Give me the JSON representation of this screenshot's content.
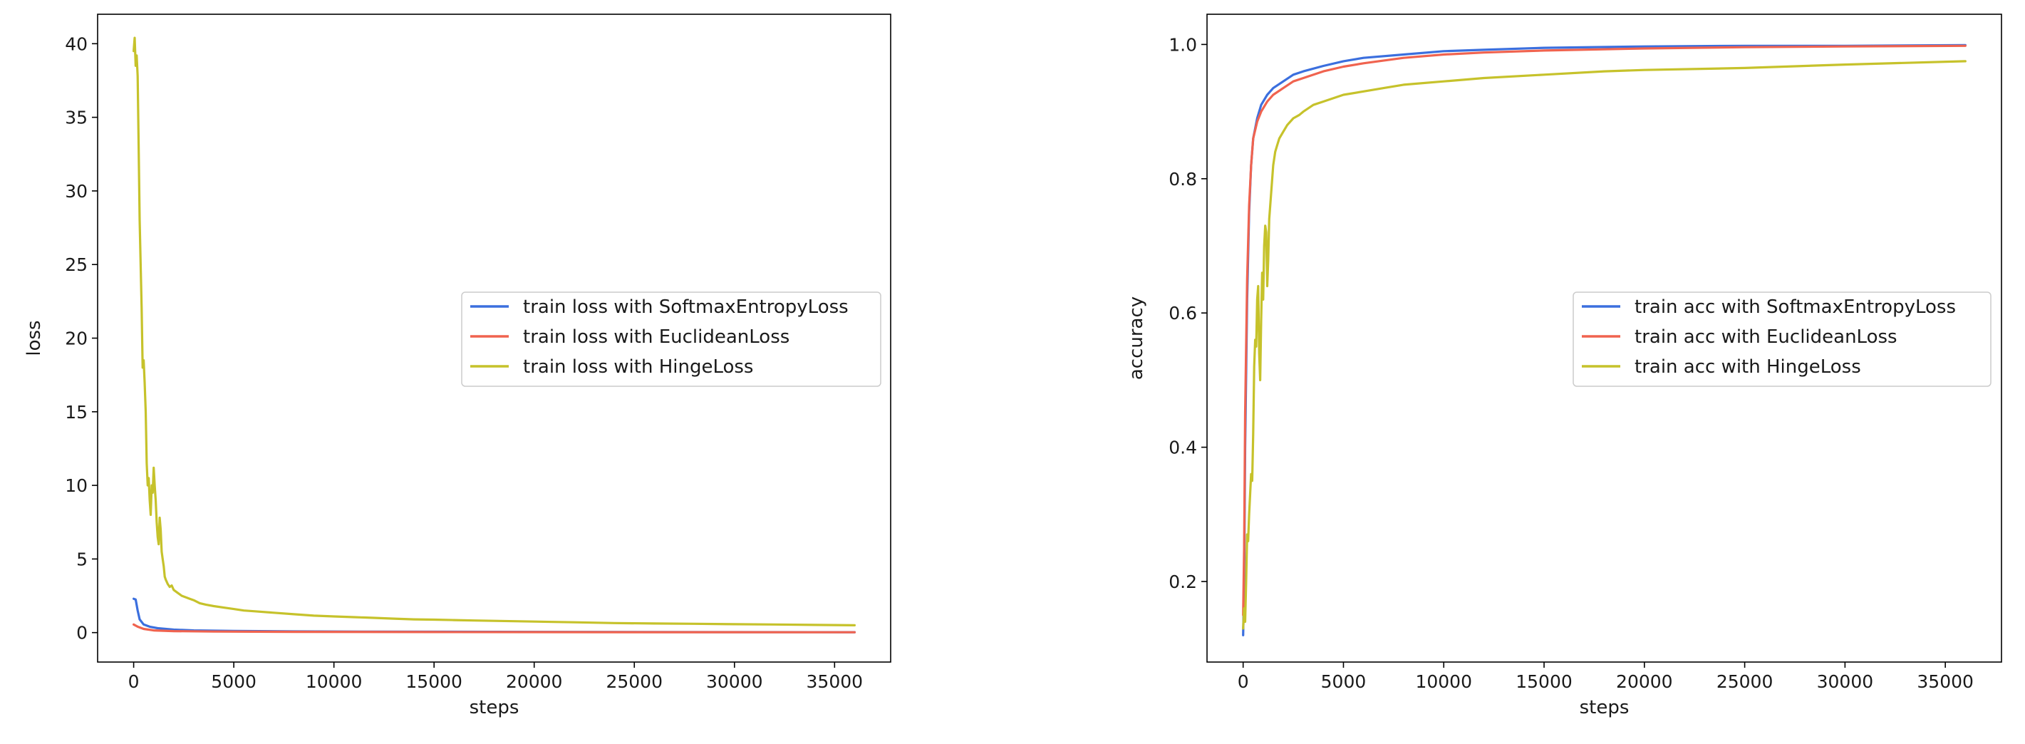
{
  "chart_data": [
    {
      "type": "line",
      "xlabel": "steps",
      "ylabel": "loss",
      "xlim": [
        -1800,
        37800
      ],
      "ylim": [
        -2,
        42
      ],
      "xticks": [
        0,
        5000,
        10000,
        15000,
        20000,
        25000,
        30000,
        35000
      ],
      "yticks": [
        0,
        5,
        10,
        15,
        20,
        25,
        30,
        35,
        40
      ],
      "grid": false,
      "legend_position": "center-right",
      "series": [
        {
          "name": "train loss with SoftmaxEntropyLoss",
          "color": "#3b6fde",
          "x": [
            0,
            100,
            200,
            300,
            500,
            800,
            1200,
            2000,
            3000,
            5000,
            8000,
            12000,
            18000,
            25000,
            30000,
            36000
          ],
          "y": [
            2.3,
            2.25,
            1.5,
            0.9,
            0.55,
            0.4,
            0.3,
            0.2,
            0.15,
            0.11,
            0.08,
            0.06,
            0.05,
            0.04,
            0.035,
            0.03
          ]
        },
        {
          "name": "train loss with EuclideanLoss",
          "color": "#f0634f",
          "x": [
            0,
            200,
            500,
            1000,
            2000,
            4000,
            8000,
            15000,
            25000,
            36000
          ],
          "y": [
            0.55,
            0.4,
            0.25,
            0.15,
            0.1,
            0.07,
            0.05,
            0.04,
            0.03,
            0.025
          ]
        },
        {
          "name": "train loss with HingeLoss",
          "color": "#c6c22b",
          "x": [
            0,
            50,
            100,
            150,
            200,
            250,
            300,
            400,
            450,
            500,
            550,
            600,
            650,
            700,
            750,
            800,
            850,
            900,
            950,
            1000,
            1050,
            1100,
            1150,
            1200,
            1250,
            1300,
            1350,
            1400,
            1450,
            1500,
            1550,
            1600,
            1700,
            1800,
            1900,
            2000,
            2200,
            2400,
            2600,
            2800,
            3000,
            3300,
            3600,
            4000,
            4500,
            5000,
            5500,
            6000,
            7000,
            8000,
            9000,
            10000,
            11000,
            12000,
            13000,
            14000,
            15000,
            16000,
            17000,
            18000,
            20000,
            22000,
            24000,
            26000,
            28000,
            30000,
            32000,
            34000,
            36000
          ],
          "y": [
            39.5,
            40.4,
            38.5,
            39.2,
            37.8,
            33,
            28,
            22,
            18,
            18.5,
            17,
            15,
            11.5,
            10,
            10.5,
            9,
            8,
            10,
            9.5,
            11.2,
            10,
            9,
            7.5,
            6.5,
            6,
            7.8,
            7,
            5.5,
            5,
            4.5,
            3.8,
            3.6,
            3.3,
            3.1,
            3.2,
            2.9,
            2.7,
            2.5,
            2.4,
            2.3,
            2.2,
            2.0,
            1.9,
            1.8,
            1.7,
            1.6,
            1.5,
            1.45,
            1.35,
            1.25,
            1.15,
            1.1,
            1.05,
            1.0,
            0.95,
            0.9,
            0.88,
            0.85,
            0.82,
            0.8,
            0.75,
            0.7,
            0.65,
            0.62,
            0.6,
            0.57,
            0.55,
            0.52,
            0.5
          ]
        }
      ]
    },
    {
      "type": "line",
      "xlabel": "steps",
      "ylabel": "accuracy",
      "xlim": [
        -1800,
        37800
      ],
      "ylim": [
        0.08,
        1.045
      ],
      "xticks": [
        0,
        5000,
        10000,
        15000,
        20000,
        25000,
        30000,
        35000
      ],
      "yticks": [
        0.2,
        0.4,
        0.6,
        0.8,
        1.0
      ],
      "grid": false,
      "legend_position": "center-right",
      "series": [
        {
          "name": "train acc with SoftmaxEntropyLoss",
          "color": "#3b6fde",
          "x": [
            0,
            50,
            100,
            200,
            300,
            400,
            500,
            700,
            900,
            1200,
            1500,
            2000,
            2500,
            3000,
            4000,
            5000,
            6000,
            8000,
            10000,
            12000,
            15000,
            20000,
            25000,
            30000,
            36000
          ],
          "y": [
            0.12,
            0.2,
            0.4,
            0.62,
            0.75,
            0.82,
            0.86,
            0.89,
            0.91,
            0.925,
            0.935,
            0.945,
            0.955,
            0.96,
            0.968,
            0.975,
            0.98,
            0.985,
            0.99,
            0.992,
            0.995,
            0.997,
            0.998,
            0.998,
            0.999
          ]
        },
        {
          "name": "train acc with EuclideanLoss",
          "color": "#f0634f",
          "x": [
            0,
            50,
            100,
            200,
            300,
            400,
            500,
            700,
            900,
            1200,
            1500,
            2000,
            2500,
            3000,
            4000,
            5000,
            6000,
            8000,
            10000,
            12000,
            15000,
            20000,
            25000,
            30000,
            36000
          ],
          "y": [
            0.15,
            0.25,
            0.45,
            0.65,
            0.76,
            0.82,
            0.86,
            0.885,
            0.9,
            0.915,
            0.925,
            0.935,
            0.945,
            0.95,
            0.96,
            0.967,
            0.972,
            0.98,
            0.985,
            0.988,
            0.991,
            0.994,
            0.996,
            0.997,
            0.998
          ]
        },
        {
          "name": "train acc with HingeLoss",
          "color": "#c6c22b",
          "x": [
            0,
            50,
            100,
            150,
            200,
            250,
            300,
            350,
            400,
            450,
            500,
            550,
            600,
            650,
            700,
            750,
            800,
            850,
            900,
            950,
            1000,
            1050,
            1100,
            1150,
            1200,
            1250,
            1300,
            1350,
            1400,
            1450,
            1500,
            1600,
            1700,
            1800,
            2000,
            2200,
            2500,
            2800,
            3000,
            3500,
            4000,
            5000,
            6000,
            7000,
            8000,
            10000,
            12000,
            15000,
            18000,
            20000,
            25000,
            30000,
            36000
          ],
          "y": [
            0.13,
            0.16,
            0.14,
            0.2,
            0.27,
            0.26,
            0.3,
            0.33,
            0.36,
            0.35,
            0.42,
            0.52,
            0.56,
            0.55,
            0.62,
            0.64,
            0.54,
            0.5,
            0.59,
            0.66,
            0.62,
            0.7,
            0.73,
            0.72,
            0.64,
            0.68,
            0.74,
            0.76,
            0.78,
            0.8,
            0.82,
            0.84,
            0.85,
            0.86,
            0.87,
            0.88,
            0.89,
            0.895,
            0.9,
            0.91,
            0.915,
            0.925,
            0.93,
            0.935,
            0.94,
            0.945,
            0.95,
            0.955,
            0.96,
            0.962,
            0.965,
            0.97,
            0.975
          ]
        }
      ]
    }
  ]
}
